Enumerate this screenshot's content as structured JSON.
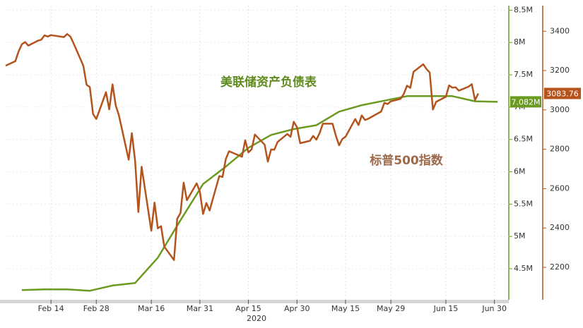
{
  "chart_data": {
    "type": "line",
    "xlabel": "2020",
    "xlim": [
      "2020-01-31",
      "2020-07-04"
    ],
    "xticks": [
      {
        "value": "2020-02-14",
        "label": "Feb 14"
      },
      {
        "value": "2020-02-28",
        "label": "Feb 28"
      },
      {
        "value": "2020-03-16",
        "label": "Mar 16"
      },
      {
        "value": "2020-03-31",
        "label": "Mar 31"
      },
      {
        "value": "2020-04-15",
        "label": "Apr 15"
      },
      {
        "value": "2020-04-30",
        "label": "Apr 30"
      },
      {
        "value": "2020-05-15",
        "label": "May 15"
      },
      {
        "value": "2020-05-29",
        "label": "May 29"
      },
      {
        "value": "2020-06-15",
        "label": "Jun 15"
      },
      {
        "value": "2020-06-30",
        "label": "Jun 30"
      }
    ],
    "ylim": [
      4.02,
      8.57
    ],
    "yticks": [
      {
        "value": 4.5,
        "label": "4.5M"
      },
      {
        "value": 5,
        "label": "5M"
      },
      {
        "value": 5.5,
        "label": "5.5M"
      },
      {
        "value": 6,
        "label": "6M"
      },
      {
        "value": 6.5,
        "label": "6.5M"
      },
      {
        "value": 7,
        "label": "7M"
      },
      {
        "value": 7.5,
        "label": "7.5M"
      },
      {
        "value": 8,
        "label": "8M"
      },
      {
        "value": 8.5,
        "label": "8.5M"
      }
    ],
    "y2lim": [
      2035,
      3530
    ],
    "y2ticks": [
      2200,
      2400,
      2600,
      2800,
      3000,
      3200,
      3400
    ],
    "grid": true,
    "series": [
      {
        "name": "美联储资产负债表",
        "color": "#6a9a1f",
        "axis": "y",
        "x": [
          "2020-02-05",
          "2020-02-12",
          "2020-02-19",
          "2020-02-26",
          "2020-03-04",
          "2020-03-11",
          "2020-03-18",
          "2020-03-25",
          "2020-04-01",
          "2020-04-08",
          "2020-04-15",
          "2020-04-22",
          "2020-04-29",
          "2020-05-06",
          "2020-05-13",
          "2020-05-20",
          "2020-05-27",
          "2020-06-03",
          "2020-06-10",
          "2020-06-17",
          "2020-06-24",
          "2020-07-01"
        ],
        "values": [
          4.17,
          4.18,
          4.18,
          4.16,
          4.24,
          4.28,
          4.67,
          5.25,
          5.81,
          6.08,
          6.37,
          6.57,
          6.66,
          6.72,
          6.93,
          7.03,
          7.1,
          7.17,
          7.17,
          7.17,
          7.09,
          7.082
        ],
        "value_labels": [
          null,
          null,
          null,
          null,
          null,
          null,
          null,
          null,
          null,
          null,
          null,
          null,
          null,
          null,
          null,
          null,
          null,
          null,
          null,
          null,
          null,
          "7.082M"
        ]
      },
      {
        "name": "标普500指数",
        "color": "#b5531c",
        "axis": "y2",
        "x": [
          "2020-01-31",
          "2020-02-03",
          "2020-02-04",
          "2020-02-05",
          "2020-02-06",
          "2020-02-07",
          "2020-02-10",
          "2020-02-11",
          "2020-02-12",
          "2020-02-13",
          "2020-02-14",
          "2020-02-18",
          "2020-02-19",
          "2020-02-20",
          "2020-02-21",
          "2020-02-24",
          "2020-02-25",
          "2020-02-26",
          "2020-02-27",
          "2020-02-28",
          "2020-03-02",
          "2020-03-03",
          "2020-03-04",
          "2020-03-05",
          "2020-03-06",
          "2020-03-09",
          "2020-03-10",
          "2020-03-11",
          "2020-03-12",
          "2020-03-13",
          "2020-03-16",
          "2020-03-17",
          "2020-03-18",
          "2020-03-19",
          "2020-03-20",
          "2020-03-23",
          "2020-03-24",
          "2020-03-25",
          "2020-03-26",
          "2020-03-27",
          "2020-03-30",
          "2020-03-31",
          "2020-04-01",
          "2020-04-02",
          "2020-04-03",
          "2020-04-06",
          "2020-04-07",
          "2020-04-08",
          "2020-04-09",
          "2020-04-13",
          "2020-04-14",
          "2020-04-15",
          "2020-04-16",
          "2020-04-17",
          "2020-04-20",
          "2020-04-21",
          "2020-04-22",
          "2020-04-23",
          "2020-04-24",
          "2020-04-27",
          "2020-04-28",
          "2020-04-29",
          "2020-04-30",
          "2020-05-01",
          "2020-05-04",
          "2020-05-05",
          "2020-05-06",
          "2020-05-07",
          "2020-05-08",
          "2020-05-11",
          "2020-05-12",
          "2020-05-13",
          "2020-05-14",
          "2020-05-15",
          "2020-05-18",
          "2020-05-19",
          "2020-05-20",
          "2020-05-21",
          "2020-05-22",
          "2020-05-26",
          "2020-05-27",
          "2020-05-28",
          "2020-05-29",
          "2020-06-01",
          "2020-06-02",
          "2020-06-03",
          "2020-06-04",
          "2020-06-05",
          "2020-06-08",
          "2020-06-09",
          "2020-06-10",
          "2020-06-11",
          "2020-06-12",
          "2020-06-15",
          "2020-06-16",
          "2020-06-17",
          "2020-06-18",
          "2020-06-19",
          "2020-06-22",
          "2020-06-23",
          "2020-06-24",
          "2020-06-25"
        ],
        "values": [
          3225,
          3248,
          3297,
          3334,
          3345,
          3327,
          3352,
          3357,
          3379,
          3373,
          3380,
          3370,
          3386,
          3373,
          3338,
          3225,
          3128,
          3116,
          2979,
          2954,
          3090,
          3003,
          3130,
          3024,
          2972,
          2747,
          2882,
          2741,
          2481,
          2711,
          2386,
          2529,
          2398,
          2409,
          2305,
          2237,
          2447,
          2476,
          2630,
          2541,
          2627,
          2585,
          2471,
          2527,
          2489,
          2664,
          2659,
          2750,
          2790,
          2762,
          2846,
          2784,
          2800,
          2875,
          2823,
          2737,
          2799,
          2798,
          2837,
          2878,
          2863,
          2940,
          2912,
          2831,
          2843,
          2868,
          2849,
          2882,
          2930,
          2930,
          2870,
          2820,
          2852,
          2864,
          2954,
          2923,
          2972,
          2949,
          2955,
          2992,
          3036,
          3030,
          3044,
          3056,
          3081,
          3123,
          3112,
          3194,
          3232,
          3208,
          3190,
          3002,
          3041,
          3067,
          3125,
          3113,
          3115,
          3098,
          3118,
          3131,
          3050,
          3083.76
        ],
        "value_labels": [
          null,
          null,
          null,
          null,
          null,
          null,
          null,
          null,
          null,
          null,
          null,
          null,
          null,
          null,
          null,
          null,
          null,
          null,
          null,
          null,
          null,
          null,
          null,
          null,
          null,
          null,
          null,
          null,
          null,
          null,
          null,
          null,
          null,
          null,
          null,
          null,
          null,
          null,
          null,
          null,
          null,
          null,
          null,
          null,
          null,
          null,
          null,
          null,
          null,
          null,
          null,
          null,
          null,
          null,
          null,
          null,
          null,
          null,
          null,
          null,
          null,
          null,
          null,
          null,
          null,
          null,
          null,
          null,
          null,
          null,
          null,
          null,
          null,
          null,
          null,
          null,
          null,
          null,
          null,
          null,
          null,
          null,
          null,
          null,
          null,
          null,
          null,
          null,
          null,
          null,
          null,
          null,
          null,
          null,
          null,
          null,
          null,
          null,
          null,
          null,
          null,
          "3083.76"
        ]
      }
    ]
  }
}
